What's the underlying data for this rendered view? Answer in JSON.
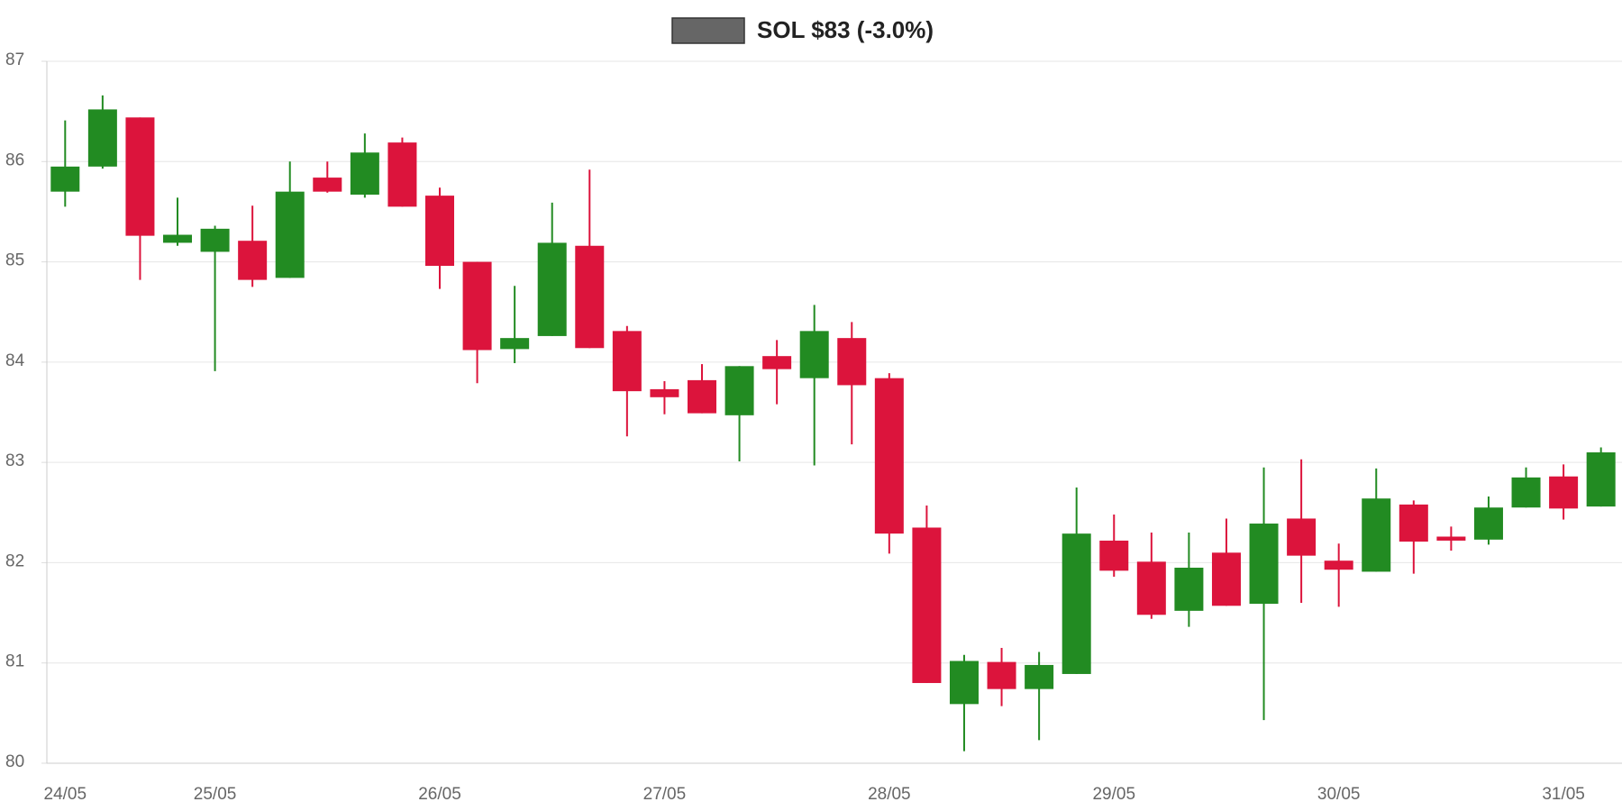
{
  "chart_data": {
    "type": "candlestick",
    "categories": [
      "24/05",
      null,
      null,
      null,
      "25/05",
      null,
      null,
      null,
      null,
      null,
      "26/05",
      null,
      null,
      null,
      null,
      null,
      "27/05",
      null,
      null,
      null,
      null,
      null,
      "28/05",
      null,
      null,
      null,
      null,
      null,
      "29/05",
      null,
      null,
      null,
      null,
      null,
      "30/05",
      null,
      null,
      null,
      null,
      null,
      "31/05",
      null
    ],
    "series": [
      {
        "name": "SOL $83 (-3.0%)",
        "color": "#666666",
        "up_color": "#228b22",
        "down_color": "#dc143c",
        "open": [
          85.7,
          85.95,
          86.44,
          85.19,
          85.1,
          85.21,
          84.84,
          85.84,
          85.67,
          86.19,
          85.66,
          85.0,
          84.13,
          84.26,
          85.16,
          84.31,
          83.73,
          83.82,
          83.47,
          84.06,
          83.84,
          84.24,
          83.84,
          82.35,
          80.59,
          81.01,
          80.74,
          80.89,
          82.22,
          82.01,
          81.52,
          82.1,
          81.59,
          82.44,
          82.02,
          81.91,
          82.58,
          82.26,
          82.23,
          82.55,
          82.86,
          82.56
        ],
        "high": [
          86.41,
          86.66,
          86.44,
          85.64,
          85.36,
          85.56,
          86.0,
          86.0,
          86.28,
          86.24,
          85.74,
          85.0,
          84.76,
          85.59,
          85.92,
          84.36,
          83.81,
          83.98,
          83.96,
          84.22,
          84.57,
          84.4,
          83.89,
          82.57,
          81.08,
          81.15,
          81.11,
          82.75,
          82.48,
          82.3,
          82.3,
          82.44,
          82.95,
          83.03,
          82.19,
          82.94,
          82.62,
          82.36,
          82.66,
          82.95,
          82.98,
          83.15
        ],
        "low": [
          85.55,
          85.93,
          84.82,
          85.16,
          83.91,
          84.75,
          84.84,
          85.69,
          85.64,
          85.55,
          84.73,
          83.79,
          83.99,
          84.26,
          84.14,
          83.26,
          83.48,
          83.49,
          83.01,
          83.58,
          82.97,
          83.18,
          82.09,
          80.8,
          80.12,
          80.57,
          80.23,
          80.89,
          81.86,
          81.44,
          81.36,
          81.57,
          80.43,
          81.6,
          81.56,
          81.91,
          81.89,
          82.12,
          82.18,
          82.55,
          82.43,
          82.56
        ],
        "close": [
          85.95,
          86.52,
          85.26,
          85.27,
          85.33,
          84.82,
          85.7,
          85.7,
          86.09,
          85.55,
          84.96,
          84.12,
          84.24,
          85.19,
          84.14,
          83.71,
          83.65,
          83.49,
          83.96,
          83.93,
          84.31,
          83.77,
          82.29,
          80.8,
          81.02,
          80.74,
          80.98,
          82.29,
          81.92,
          81.48,
          81.95,
          81.57,
          82.39,
          82.07,
          81.93,
          82.64,
          82.21,
          82.22,
          82.55,
          82.85,
          82.54,
          83.1
        ]
      }
    ],
    "ylim": [
      80,
      87
    ],
    "yticks": [
      80,
      81,
      82,
      83,
      84,
      85,
      86,
      87
    ],
    "grid": true,
    "legend": "top"
  }
}
